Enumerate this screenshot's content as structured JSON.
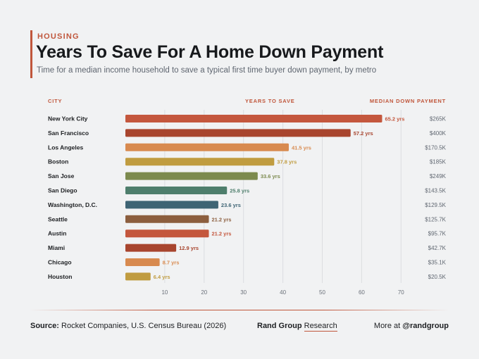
{
  "header": {
    "kicker": "HOUSING",
    "title": "Years To Save For A Home Down Payment",
    "subtitle": "Time for a median income household to save a typical first time buyer down payment, by metro"
  },
  "columns": {
    "city": "CITY",
    "years": "YEARS TO SAVE",
    "payment": "MEDIAN DOWN PAYMENT"
  },
  "chart_data": {
    "type": "bar",
    "orientation": "horizontal",
    "categories": [
      "New York City",
      "San Francisco",
      "Los Angeles",
      "Boston",
      "San Jose",
      "San Diego",
      "Washington, D.C.",
      "Seattle",
      "Austin",
      "Miami",
      "Chicago",
      "Houston"
    ],
    "values": [
      65.2,
      57.2,
      41.5,
      37.8,
      33.6,
      25.8,
      23.6,
      21.2,
      21.2,
      12.9,
      8.7,
      6.4
    ],
    "value_labels": [
      "65.2 yrs",
      "57.2 yrs",
      "41.5 yrs",
      "37.8 yrs",
      "33.6 yrs",
      "25.8 yrs",
      "23.6 yrs",
      "21.2 yrs",
      "21.2 yrs",
      "12.9 yrs",
      "8.7 yrs",
      "6.4 yrs"
    ],
    "down_payments": [
      "$265K",
      "$400K",
      "$170.5K",
      "$185K",
      "$249K",
      "$143.5K",
      "$129.5K",
      "$125.7K",
      "$95.7K",
      "$42.7K",
      "$35.1K",
      "$20.5K"
    ],
    "colors": [
      "#c4573d",
      "#a8452e",
      "#d88a4f",
      "#c09c40",
      "#7c8a4e",
      "#4e7e6c",
      "#3e6474",
      "#8c5e3e",
      "#c4573d",
      "#a8452e",
      "#d88a4f",
      "#c09c40"
    ],
    "xticks": [
      10,
      20,
      30,
      40,
      50,
      60,
      70
    ],
    "xlim": [
      0,
      70
    ],
    "grid": true
  },
  "footer": {
    "source_label": "Source:",
    "source_text": "Rocket Companies, U.S. Census Bureau (2026)",
    "brand_bold": "Rand Group",
    "brand_rest": "Research",
    "more_text": "More at",
    "handle": "@randgroup"
  }
}
